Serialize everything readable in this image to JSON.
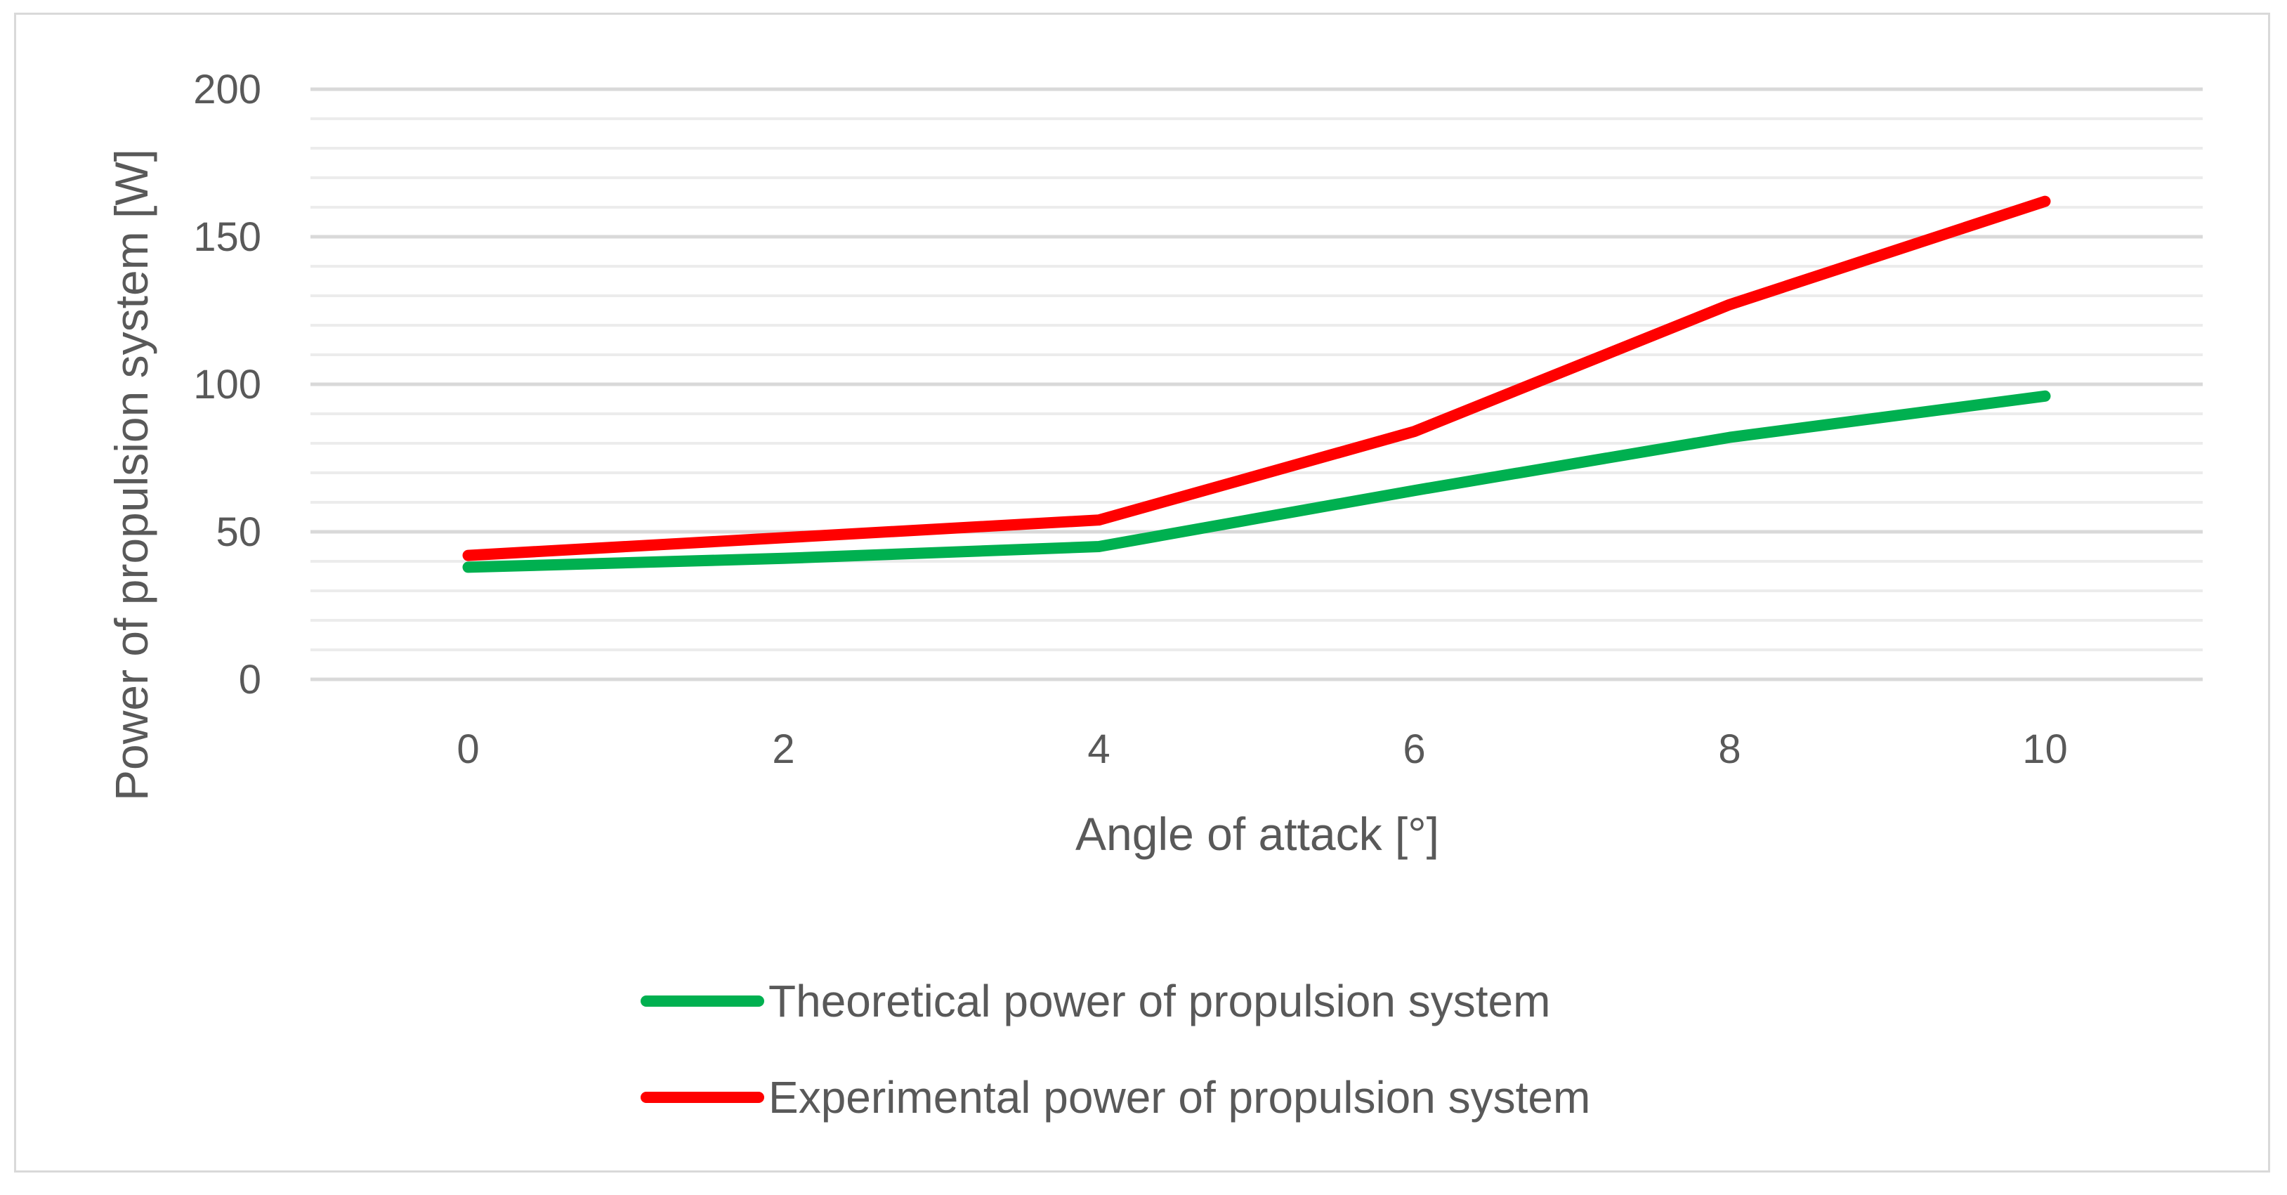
{
  "chart_data": {
    "type": "line",
    "title": "",
    "xlabel": "Angle of attack [°]",
    "ylabel": "Power of propulsion system [W]",
    "x": [
      0,
      2,
      4,
      6,
      8,
      10
    ],
    "x_tick_labels": [
      "0",
      "2",
      "4",
      "6",
      "8",
      "10"
    ],
    "y_tick_labels": [
      "0",
      "50",
      "100",
      "150",
      "200"
    ],
    "ylim": [
      0,
      200
    ],
    "y_major_step": 50,
    "y_minor_step": 10,
    "grid": true,
    "legend_position": "bottom",
    "series": [
      {
        "name": "Theoretical power of propulsion system",
        "color": "#00b050",
        "values": [
          38,
          41,
          45,
          64,
          82,
          96
        ]
      },
      {
        "name": "Experimental power of propulsion system",
        "color": "#ff0000",
        "values": [
          42,
          48,
          54,
          84,
          127,
          162
        ]
      }
    ]
  }
}
